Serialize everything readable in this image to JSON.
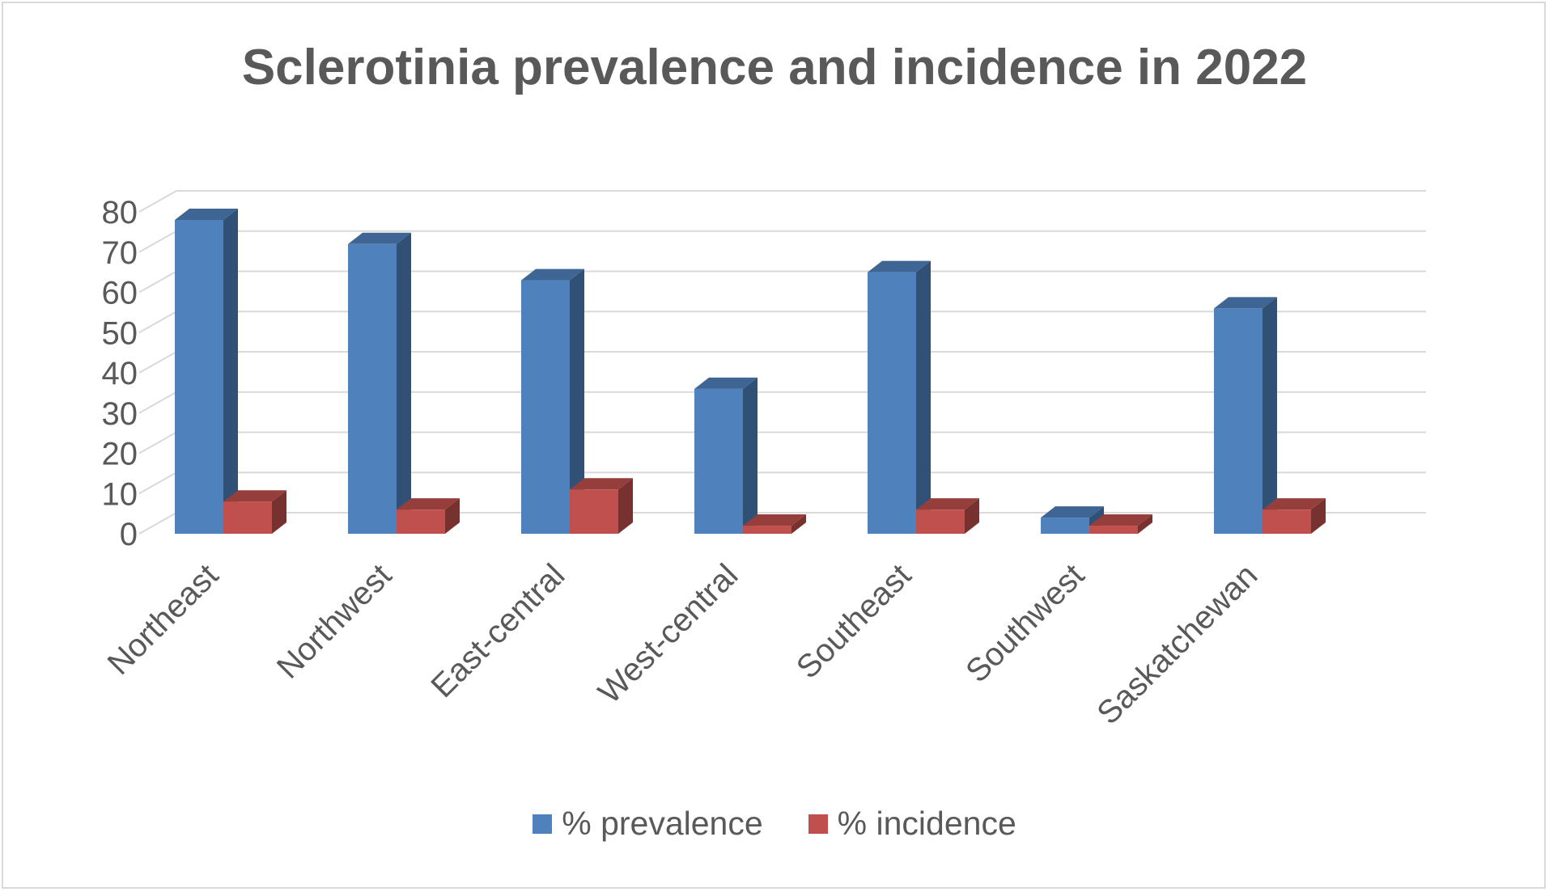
{
  "chart_data": {
    "type": "bar",
    "title": "Sclerotinia prevalence and incidence in 2022",
    "categories": [
      "Northeast",
      "Northwest",
      "East-central",
      "West-central",
      "Southeast",
      "Southwest",
      "Saskatchewan"
    ],
    "series": [
      {
        "name": "% prevalence",
        "values": [
          78,
          72,
          63,
          36,
          65,
          4,
          56
        ],
        "color": "#4f81bd"
      },
      {
        "name": "% incidence",
        "values": [
          8,
          6,
          11,
          2,
          6,
          2,
          6
        ],
        "color": "#c0504d"
      }
    ],
    "ylim": [
      0,
      80
    ],
    "yticks": [
      "0",
      "10",
      "20",
      "30",
      "40",
      "50",
      "60",
      "70",
      "80"
    ],
    "grid": true,
    "legend": "bottom",
    "style": "3d-clustered"
  }
}
